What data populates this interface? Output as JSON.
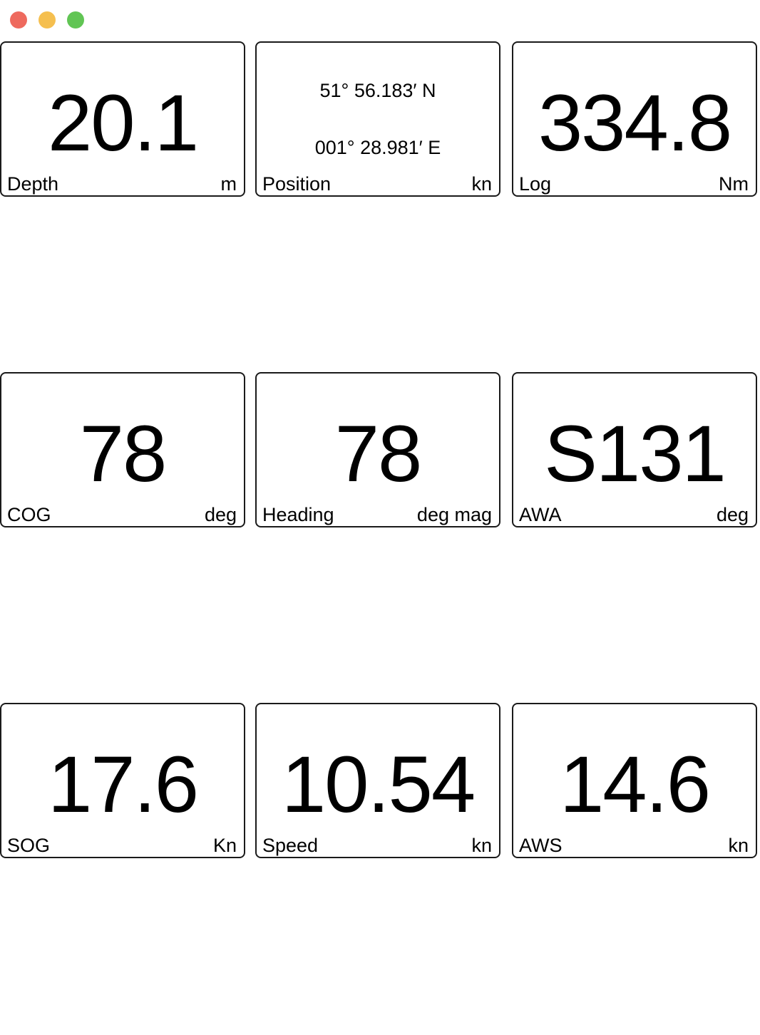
{
  "window": {
    "traffic_lights": {
      "close_color": "#ee6a5e",
      "minimize_color": "#f5bf4f",
      "zoom_color": "#61c554"
    }
  },
  "panels": {
    "depth": {
      "value": "20.1",
      "label": "Depth",
      "unit": "m"
    },
    "position": {
      "lat": "51° 56.183′ N",
      "lon": "001° 28.981′ E",
      "label": "Position",
      "unit": "kn"
    },
    "log": {
      "value": "334.8",
      "label": "Log",
      "unit": "Nm"
    },
    "cog": {
      "value": "78",
      "label": "COG",
      "unit": "deg"
    },
    "heading": {
      "value": "78",
      "label": "Heading",
      "unit": "deg mag"
    },
    "awa": {
      "value": "S131",
      "label": "AWA",
      "unit": "deg"
    },
    "sog": {
      "value": "17.6",
      "label": "SOG",
      "unit": "Kn"
    },
    "speed": {
      "value": "10.54",
      "label": "Speed",
      "unit": "kn"
    },
    "aws": {
      "value": "14.6",
      "label": "AWS",
      "unit": "kn"
    }
  }
}
